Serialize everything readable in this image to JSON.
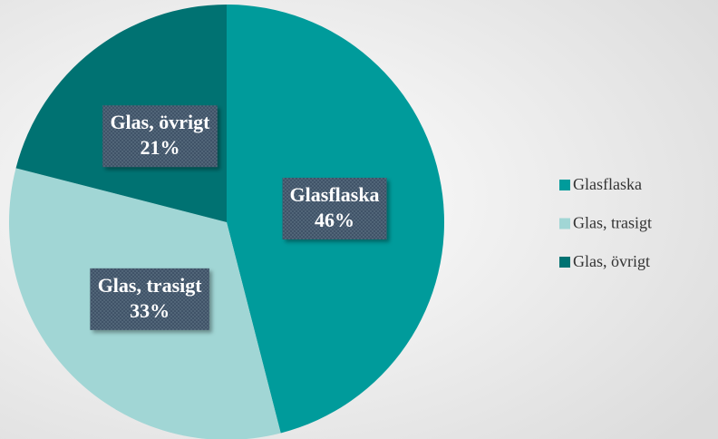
{
  "chart_data": {
    "type": "pie",
    "categories": [
      "Glasflaska",
      "Glas, trasigt",
      "Glas, övrigt"
    ],
    "values": [
      46,
      33,
      21
    ],
    "value_labels": [
      "46%",
      "33%",
      "21%"
    ],
    "colors": [
      "#009b9b",
      "#a1d6d5",
      "#007272"
    ],
    "legend": "right"
  }
}
